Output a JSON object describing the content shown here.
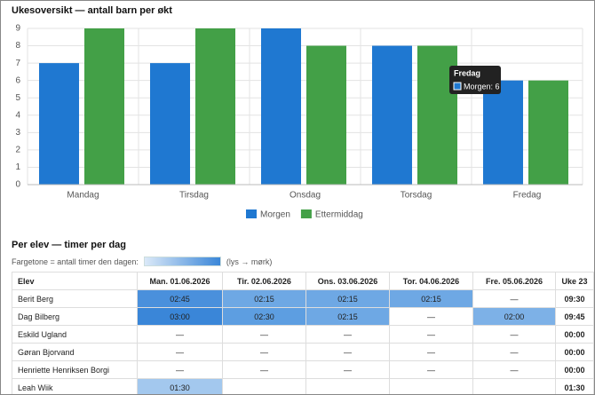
{
  "chart_data": {
    "type": "bar",
    "title": "Ukesoversikt — antall barn per økt",
    "categories": [
      "Mandag",
      "Tirsdag",
      "Onsdag",
      "Torsdag",
      "Fredag"
    ],
    "series": [
      {
        "name": "Morgen",
        "color": "#1f78d1",
        "values": [
          7,
          7,
          9,
          8,
          6
        ]
      },
      {
        "name": "Ettermiddag",
        "color": "#43a047",
        "values": [
          9,
          9,
          8,
          8,
          6
        ]
      }
    ],
    "ylim": [
      0,
      9
    ],
    "yticks": [
      0,
      1,
      2,
      3,
      4,
      5,
      6,
      7,
      8,
      9
    ],
    "grid": true,
    "tooltip": {
      "title": "Fredag",
      "text": "Morgen: 6"
    }
  },
  "table_section": {
    "title": "Per elev — timer per dag",
    "legend_text": "Fargetone = antall timer den dagen:",
    "legend_note": "(lys → mørk)",
    "legend_colors": [
      "#dbe9f8",
      "#3a86d8"
    ],
    "headers": [
      "Elev",
      "Man. 01.06.2026",
      "Tir. 02.06.2026",
      "Ons. 03.06.2026",
      "Tor. 04.06.2026",
      "Fre. 05.06.2026",
      "Uke 23"
    ],
    "rows": [
      {
        "cells": [
          "Berit Berg",
          "02:45",
          "02:15",
          "02:15",
          "02:15",
          "—",
          "09:30"
        ],
        "colors": [
          null,
          "#4a90dc",
          "#6ea8e4",
          "#6ea8e4",
          "#6ea8e4",
          null,
          null
        ]
      },
      {
        "cells": [
          "Dag Bilberg",
          "03:00",
          "02:30",
          "02:15",
          "—",
          "02:00",
          "09:45"
        ],
        "colors": [
          null,
          "#3a86d8",
          "#5d9ee1",
          "#6ea8e4",
          null,
          "#7db1e7",
          null
        ]
      },
      {
        "cells": [
          "Eskild Ugland",
          "—",
          "—",
          "—",
          "—",
          "—",
          "00:00"
        ],
        "colors": [
          null,
          null,
          null,
          null,
          null,
          null,
          null
        ]
      },
      {
        "cells": [
          "Gøran Bjorvand",
          "—",
          "—",
          "—",
          "—",
          "—",
          "00:00"
        ],
        "colors": [
          null,
          null,
          null,
          null,
          null,
          null,
          null
        ]
      },
      {
        "cells": [
          "Henriette Henriksen Borgi",
          "—",
          "—",
          "—",
          "—",
          "—",
          "00:00"
        ],
        "colors": [
          null,
          null,
          null,
          null,
          null,
          null,
          null
        ]
      },
      {
        "cells": [
          "Leah Wiik",
          "01:30",
          null,
          null,
          null,
          null,
          "01:30"
        ],
        "colors": [
          null,
          "#a3c8ee",
          null,
          null,
          null,
          null,
          null
        ]
      }
    ]
  }
}
